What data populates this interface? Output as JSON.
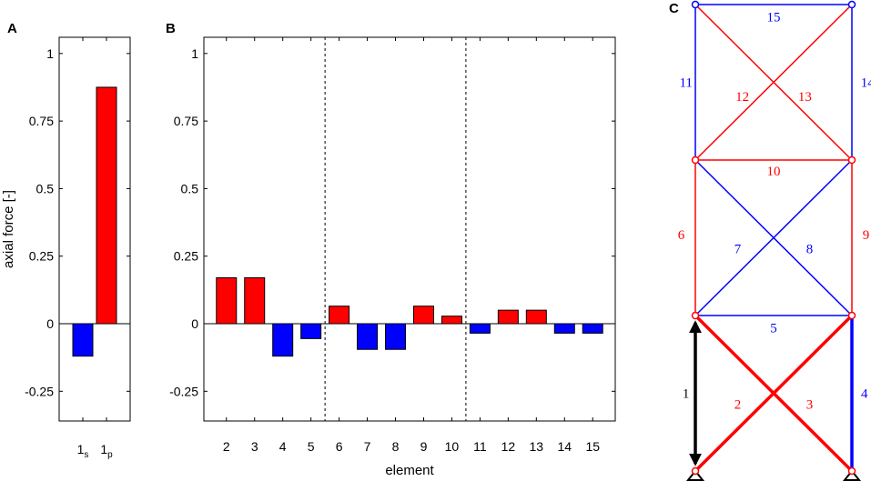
{
  "colors": {
    "tension": "#ff0000",
    "compression": "#0000ff",
    "neutral": "#000000"
  },
  "chart_data": [
    {
      "panel": "A",
      "type": "bar",
      "ylabel": "axial force [-]",
      "ylim": [
        -0.36,
        1.06
      ],
      "yticks": [
        -0.25,
        0,
        0.25,
        0.5,
        0.75,
        1
      ],
      "ytick_labels": [
        "-0.25",
        "0",
        "0.25",
        "0.5",
        "0.75",
        "1"
      ],
      "categories": [
        {
          "base": "1",
          "sub": "s"
        },
        {
          "base": "1",
          "sub": "p"
        }
      ],
      "values": [
        -0.12,
        0.875
      ],
      "bar_colors": [
        "compression",
        "tension"
      ]
    },
    {
      "panel": "B",
      "type": "bar",
      "xlabel": "element",
      "ylim": [
        -0.36,
        1.06
      ],
      "yticks": [
        -0.25,
        0,
        0.25,
        0.5,
        0.75,
        1
      ],
      "ytick_labels": [
        "-0.25",
        "0",
        "0.25",
        "0.5",
        "0.75",
        "1"
      ],
      "categories": [
        "2",
        "3",
        "4",
        "5",
        "6",
        "7",
        "8",
        "9",
        "10",
        "11",
        "12",
        "13",
        "14",
        "15"
      ],
      "x": [
        2,
        3,
        4,
        5,
        6,
        7,
        8,
        9,
        10,
        11,
        12,
        13,
        14,
        15
      ],
      "xlim": [
        1.2,
        15.8
      ],
      "values": [
        0.17,
        0.17,
        -0.12,
        -0.055,
        0.065,
        -0.095,
        -0.095,
        0.065,
        0.028,
        -0.035,
        0.05,
        0.05,
        -0.035,
        -0.035
      ],
      "bar_colors": [
        "tension",
        "tension",
        "compression",
        "compression",
        "tension",
        "compression",
        "compression",
        "tension",
        "tension",
        "compression",
        "tension",
        "tension",
        "compression",
        "compression"
      ],
      "separators_x": [
        5.5,
        10.5
      ]
    },
    {
      "panel": "C",
      "type": "diagram",
      "nodes": [
        {
          "x": 0,
          "y": 0,
          "color": "tension",
          "support": true
        },
        {
          "x": 1,
          "y": 0,
          "color": "tension",
          "support": true
        },
        {
          "x": 0,
          "y": 1,
          "color": "tension"
        },
        {
          "x": 1,
          "y": 1,
          "color": "tension"
        },
        {
          "x": 0,
          "y": 2,
          "color": "tension"
        },
        {
          "x": 1,
          "y": 2,
          "color": "tension"
        },
        {
          "x": 0,
          "y": 3,
          "color": "compression"
        },
        {
          "x": 1,
          "y": 3,
          "color": "compression"
        }
      ],
      "members": [
        {
          "label": "1",
          "from": 0,
          "to": 2,
          "color": "neutral",
          "arrow": true,
          "thick": true,
          "lx": -0.06,
          "ly": 0.5
        },
        {
          "label": "2",
          "from": 0,
          "to": 3,
          "color": "tension",
          "thick": true,
          "lx": 0.27,
          "ly": 0.43
        },
        {
          "label": "3",
          "from": 1,
          "to": 2,
          "color": "tension",
          "thick": true,
          "lx": 0.73,
          "ly": 0.43
        },
        {
          "label": "4",
          "from": 1,
          "to": 3,
          "color": "compression",
          "thick": true,
          "lx": 1.08,
          "ly": 0.5
        },
        {
          "label": "5",
          "from": 2,
          "to": 3,
          "color": "compression",
          "lx": 0.5,
          "ly": 0.92
        },
        {
          "label": "6",
          "from": 2,
          "to": 4,
          "color": "tension",
          "lx": -0.09,
          "ly": 1.52
        },
        {
          "label": "7",
          "from": 2,
          "to": 5,
          "color": "compression",
          "lx": 0.27,
          "ly": 1.43
        },
        {
          "label": "8",
          "from": 3,
          "to": 4,
          "color": "compression",
          "lx": 0.73,
          "ly": 1.43
        },
        {
          "label": "9",
          "from": 3,
          "to": 5,
          "color": "tension",
          "lx": 1.09,
          "ly": 1.52
        },
        {
          "label": "10",
          "from": 4,
          "to": 5,
          "color": "tension",
          "lx": 0.5,
          "ly": 1.93
        },
        {
          "label": "11",
          "from": 4,
          "to": 6,
          "color": "compression",
          "lx": -0.06,
          "ly": 2.5
        },
        {
          "label": "12",
          "from": 4,
          "to": 7,
          "color": "tension",
          "lx": 0.3,
          "ly": 2.41
        },
        {
          "label": "13",
          "from": 5,
          "to": 6,
          "color": "tension",
          "lx": 0.7,
          "ly": 2.41
        },
        {
          "label": "14",
          "from": 5,
          "to": 7,
          "color": "compression",
          "lx": 1.1,
          "ly": 2.5
        },
        {
          "label": "15",
          "from": 6,
          "to": 7,
          "color": "compression",
          "lx": 0.5,
          "ly": 2.92
        }
      ]
    }
  ]
}
